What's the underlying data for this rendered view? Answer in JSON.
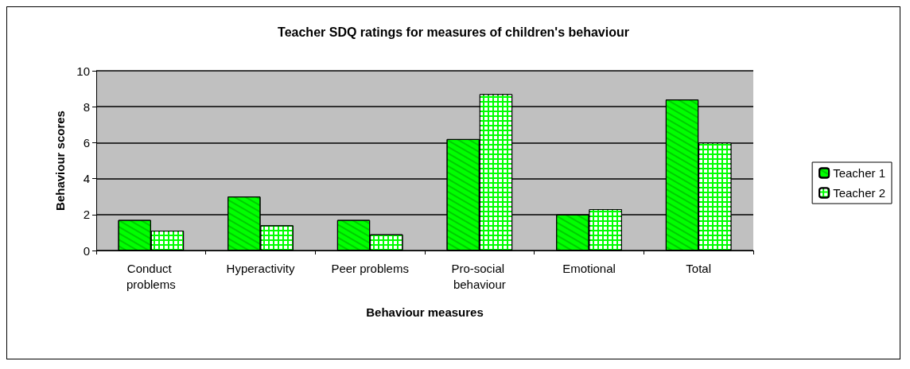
{
  "chart_data": {
    "type": "bar",
    "title": "Teacher SDQ ratings for measures of children's behaviour",
    "xlabel": "Behaviour measures",
    "ylabel": "Behaviour scores",
    "categories": [
      "Conduct problems",
      "Hyperactivity",
      "Peer problems",
      "Pro-social behaviour",
      "Emotional",
      "Total"
    ],
    "series": [
      {
        "name": "Teacher 1",
        "color": "#00ff00",
        "values": [
          1.7,
          3.0,
          1.7,
          6.2,
          2.0,
          8.4
        ]
      },
      {
        "name": "Teacher 2",
        "color": "#00ff00",
        "values": [
          1.1,
          1.4,
          0.9,
          8.7,
          2.3,
          6.0
        ]
      }
    ],
    "ylim": [
      0,
      10
    ],
    "yticks": [
      0,
      2,
      4,
      6,
      8,
      10
    ],
    "grid": "y",
    "legend": "right"
  }
}
